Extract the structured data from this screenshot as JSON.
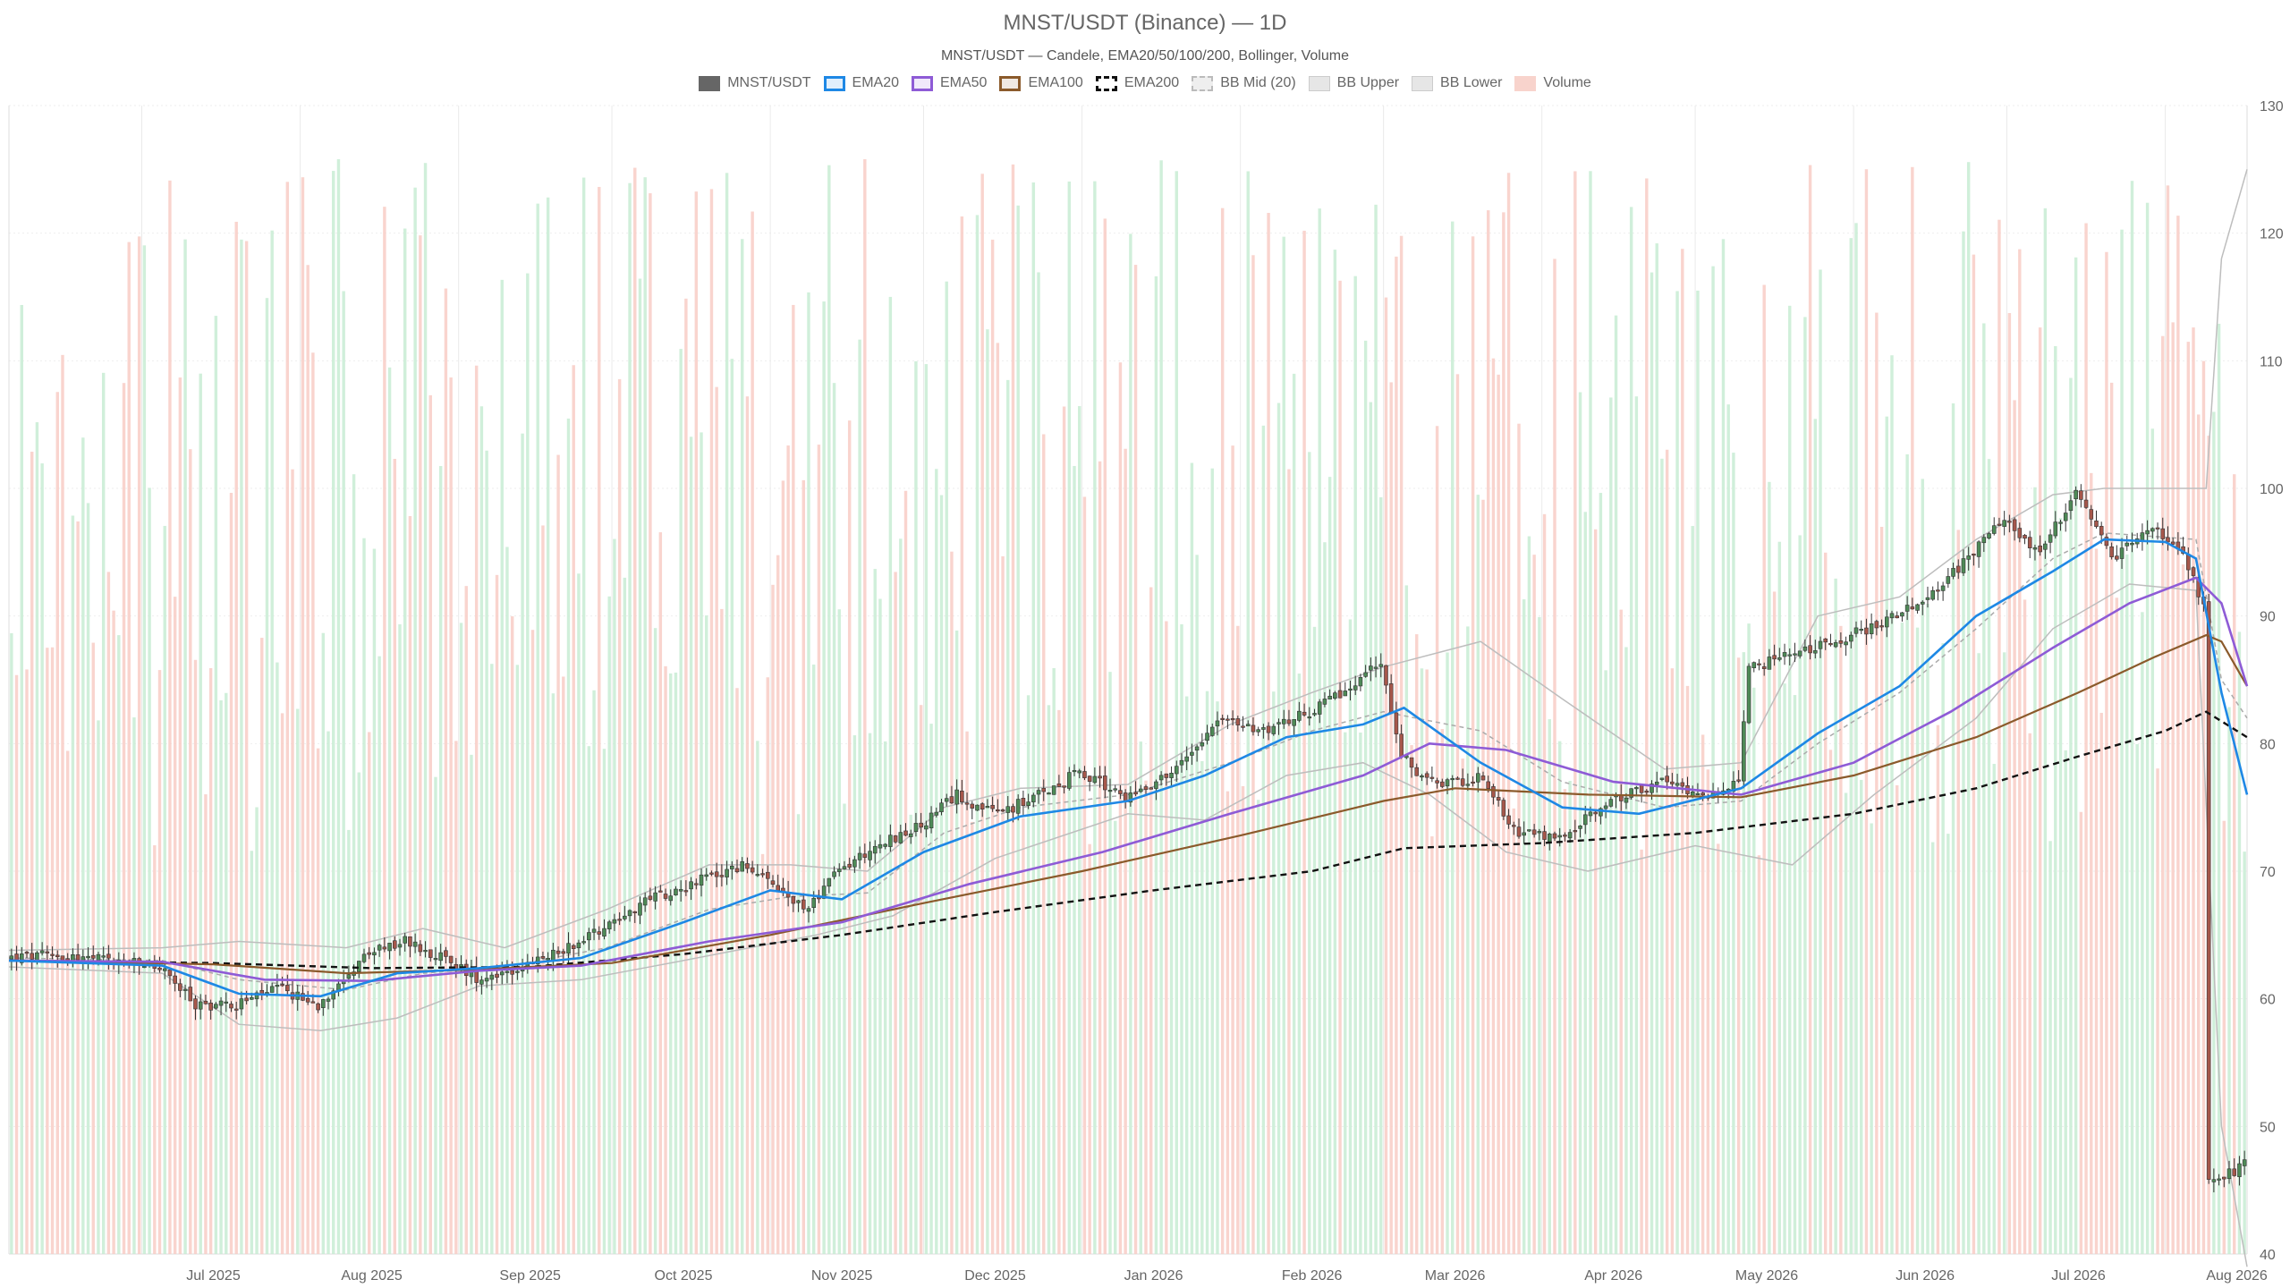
{
  "chart_data": {
    "type": "candlestick",
    "title": "MNST/USDT (Binance) — 1D",
    "subtitle": "MNST/USDT — Candele, EMA20/50/100/200, Bollinger, Volume",
    "legend": [
      {
        "name": "MNST/USDT",
        "color": "#666666",
        "style": "fill"
      },
      {
        "name": "EMA20",
        "color": "#1e88e5",
        "style": "line"
      },
      {
        "name": "EMA50",
        "color": "#8e5bd6",
        "style": "line"
      },
      {
        "name": "EMA100",
        "color": "#8b5a2b",
        "style": "line"
      },
      {
        "name": "EMA200",
        "color": "#111111",
        "style": "dashed"
      },
      {
        "name": "BB Mid (20)",
        "color": "#aaaaaa",
        "style": "dashed-light"
      },
      {
        "name": "BB Upper",
        "color": "#bbbbbb",
        "style": "light"
      },
      {
        "name": "BB Lower",
        "color": "#bbbbbb",
        "style": "light"
      },
      {
        "name": "Volume",
        "color": "#f5a89a",
        "style": "fill-light"
      }
    ],
    "x_start": "2025-06-05",
    "x_end": "2026-08-17",
    "x_ticks": [
      "Jul 2025",
      "Aug 2025",
      "Sep 2025",
      "Oct 2025",
      "Nov 2025",
      "Dec 2025",
      "Jan 2026",
      "Feb 2026",
      "Mar 2026",
      "Apr 2026",
      "May 2026",
      "Jun 2026",
      "Jul 2026",
      "Aug 2026"
    ],
    "y_ticks": [
      40,
      50,
      60,
      70,
      80,
      90,
      100,
      110,
      120,
      130
    ],
    "ylim": [
      40,
      130
    ],
    "legend_position": "top-center",
    "grid": true,
    "price_path": [
      [
        "2025-06-05",
        63.2
      ],
      [
        "2025-06-15",
        63.4
      ],
      [
        "2025-06-25",
        63.0
      ],
      [
        "2025-07-05",
        62.5
      ],
      [
        "2025-07-12",
        59.5
      ],
      [
        "2025-07-20",
        59.6
      ],
      [
        "2025-07-28",
        60.8
      ],
      [
        "2025-08-05",
        59.5
      ],
      [
        "2025-08-10",
        61.8
      ],
      [
        "2025-08-15",
        63.5
      ],
      [
        "2025-08-22",
        64.5
      ],
      [
        "2025-08-28",
        63.5
      ],
      [
        "2025-09-05",
        61.7
      ],
      [
        "2025-09-15",
        62.5
      ],
      [
        "2025-09-25",
        64.5
      ],
      [
        "2025-10-01",
        66.0
      ],
      [
        "2025-10-10",
        68.0
      ],
      [
        "2025-10-20",
        69.5
      ],
      [
        "2025-10-28",
        70.5
      ],
      [
        "2025-11-01",
        69.0
      ],
      [
        "2025-11-08",
        67.0
      ],
      [
        "2025-11-15",
        70.0
      ],
      [
        "2025-11-22",
        72.0
      ],
      [
        "2025-12-01",
        73.5
      ],
      [
        "2025-12-08",
        76.0
      ],
      [
        "2025-12-15",
        74.5
      ],
      [
        "2025-12-22",
        75.5
      ],
      [
        "2026-01-01",
        77.8
      ],
      [
        "2026-01-10",
        75.8
      ],
      [
        "2026-01-20",
        78.0
      ],
      [
        "2026-01-28",
        82.0
      ],
      [
        "2026-02-05",
        81.0
      ],
      [
        "2026-02-15",
        82.5
      ],
      [
        "2026-02-22",
        84.0
      ],
      [
        "2026-03-01",
        86.5
      ],
      [
        "2026-03-05",
        79.0
      ],
      [
        "2026-03-12",
        76.5
      ],
      [
        "2026-03-20",
        77.5
      ],
      [
        "2026-03-28",
        73.0
      ],
      [
        "2026-04-05",
        72.5
      ],
      [
        "2026-04-15",
        75.5
      ],
      [
        "2026-04-25",
        77.0
      ],
      [
        "2026-05-05",
        76.0
      ],
      [
        "2026-05-10",
        76.8
      ],
      [
        "2026-05-12",
        86.0
      ],
      [
        "2026-05-22",
        87.0
      ],
      [
        "2026-06-01",
        88.5
      ],
      [
        "2026-06-10",
        90.0
      ],
      [
        "2026-06-20",
        93.0
      ],
      [
        "2026-07-01",
        97.5
      ],
      [
        "2026-07-08",
        95.0
      ],
      [
        "2026-07-15",
        99.5
      ],
      [
        "2026-07-22",
        94.5
      ],
      [
        "2026-07-30",
        97.0
      ],
      [
        "2026-08-05",
        94.5
      ],
      [
        "2026-08-09",
        91.0
      ],
      [
        "2026-08-10",
        45.5
      ],
      [
        "2026-08-17",
        47.0
      ]
    ],
    "ema_paths": {
      "EMA20": [
        [
          "2025-06-05",
          63.0
        ],
        [
          "2025-07-05",
          62.6
        ],
        [
          "2025-07-20",
          60.4
        ],
        [
          "2025-08-05",
          60.2
        ],
        [
          "2025-08-20",
          62.0
        ],
        [
          "2025-09-05",
          62.4
        ],
        [
          "2025-09-25",
          63.2
        ],
        [
          "2025-10-15",
          66.0
        ],
        [
          "2025-11-01",
          68.5
        ],
        [
          "2025-11-15",
          67.8
        ],
        [
          "2025-12-01",
          71.5
        ],
        [
          "2025-12-20",
          74.3
        ],
        [
          "2026-01-10",
          75.5
        ],
        [
          "2026-01-25",
          77.5
        ],
        [
          "2026-02-10",
          80.5
        ],
        [
          "2026-02-25",
          81.5
        ],
        [
          "2026-03-05",
          82.8
        ],
        [
          "2026-03-20",
          78.5
        ],
        [
          "2026-04-05",
          75.0
        ],
        [
          "2026-04-20",
          74.5
        ],
        [
          "2026-05-10",
          76.5
        ],
        [
          "2026-05-25",
          80.8
        ],
        [
          "2026-06-10",
          84.5
        ],
        [
          "2026-06-25",
          90.0
        ],
        [
          "2026-07-10",
          93.5
        ],
        [
          "2026-07-20",
          96.0
        ],
        [
          "2026-08-01",
          95.8
        ],
        [
          "2026-08-07",
          94.5
        ],
        [
          "2026-08-12",
          84.0
        ],
        [
          "2026-08-17",
          76.0
        ]
      ],
      "EMA50": [
        [
          "2025-06-05",
          63.0
        ],
        [
          "2025-07-05",
          62.9
        ],
        [
          "2025-07-25",
          61.5
        ],
        [
          "2025-08-15",
          61.4
        ],
        [
          "2025-09-05",
          62.2
        ],
        [
          "2025-09-25",
          62.6
        ],
        [
          "2025-10-20",
          64.5
        ],
        [
          "2025-11-15",
          66.0
        ],
        [
          "2025-12-10",
          69.0
        ],
        [
          "2026-01-05",
          71.5
        ],
        [
          "2026-01-30",
          74.5
        ],
        [
          "2026-02-25",
          77.5
        ],
        [
          "2026-03-10",
          80.0
        ],
        [
          "2026-03-25",
          79.5
        ],
        [
          "2026-04-15",
          77.0
        ],
        [
          "2026-05-10",
          76.0
        ],
        [
          "2026-06-01",
          78.5
        ],
        [
          "2026-06-20",
          82.5
        ],
        [
          "2026-07-10",
          87.5
        ],
        [
          "2026-07-25",
          91.0
        ],
        [
          "2026-08-07",
          93.0
        ],
        [
          "2026-08-12",
          91.0
        ],
        [
          "2026-08-17",
          84.5
        ]
      ],
      "EMA100": [
        [
          "2025-06-05",
          63.0
        ],
        [
          "2025-07-15",
          62.7
        ],
        [
          "2025-08-10",
          62.0
        ],
        [
          "2025-09-05",
          62.3
        ],
        [
          "2025-10-01",
          62.8
        ],
        [
          "2025-11-01",
          65.0
        ],
        [
          "2025-12-01",
          67.5
        ],
        [
          "2026-01-01",
          70.0
        ],
        [
          "2026-02-01",
          72.8
        ],
        [
          "2026-03-01",
          75.5
        ],
        [
          "2026-03-15",
          76.5
        ],
        [
          "2026-04-10",
          76.0
        ],
        [
          "2026-05-10",
          75.8
        ],
        [
          "2026-06-01",
          77.5
        ],
        [
          "2026-06-25",
          80.5
        ],
        [
          "2026-07-15",
          84.0
        ],
        [
          "2026-07-30",
          86.8
        ],
        [
          "2026-08-09",
          88.5
        ],
        [
          "2026-08-12",
          88.0
        ],
        [
          "2026-08-17",
          84.5
        ]
      ],
      "EMA200": [
        [
          "2025-06-05",
          63.0
        ],
        [
          "2025-07-15",
          62.8
        ],
        [
          "2025-08-15",
          62.4
        ],
        [
          "2025-09-15",
          62.5
        ],
        [
          "2025-10-15",
          63.5
        ],
        [
          "2025-11-15",
          65.0
        ],
        [
          "2025-12-15",
          66.8
        ],
        [
          "2026-01-15",
          68.5
        ],
        [
          "2026-02-15",
          70.0
        ],
        [
          "2026-03-05",
          71.8
        ],
        [
          "2026-04-01",
          72.2
        ],
        [
          "2026-05-01",
          73.0
        ],
        [
          "2026-06-01",
          74.5
        ],
        [
          "2026-06-25",
          76.5
        ],
        [
          "2026-07-15",
          79.0
        ],
        [
          "2026-08-01",
          81.0
        ],
        [
          "2026-08-09",
          82.5
        ],
        [
          "2026-08-17",
          80.5
        ]
      ]
    },
    "bollinger": {
      "upper": [
        [
          "2025-06-05",
          63.8
        ],
        [
          "2025-07-05",
          64.0
        ],
        [
          "2025-07-20",
          64.5
        ],
        [
          "2025-08-10",
          64.0
        ],
        [
          "2025-08-25",
          65.5
        ],
        [
          "2025-09-10",
          64.0
        ],
        [
          "2025-09-30",
          67.0
        ],
        [
          "2025-10-20",
          70.5
        ],
        [
          "2025-11-05",
          70.5
        ],
        [
          "2025-11-20",
          70.0
        ],
        [
          "2025-12-05",
          75.0
        ],
        [
          "2025-12-20",
          76.5
        ],
        [
          "2026-01-10",
          76.8
        ],
        [
          "2026-01-30",
          81.5
        ],
        [
          "2026-02-15",
          84.0
        ],
        [
          "2026-03-01",
          86.0
        ],
        [
          "2026-03-20",
          88.0
        ],
        [
          "2026-04-05",
          83.5
        ],
        [
          "2026-04-25",
          78.0
        ],
        [
          "2026-05-10",
          78.5
        ],
        [
          "2026-05-25",
          90.0
        ],
        [
          "2026-06-10",
          91.5
        ],
        [
          "2026-06-25",
          96.0
        ],
        [
          "2026-07-10",
          99.5
        ],
        [
          "2026-07-20",
          100.0
        ],
        [
          "2026-08-09",
          100.0
        ],
        [
          "2026-08-12",
          118.0
        ],
        [
          "2026-08-17",
          125.0
        ]
      ],
      "lower": [
        [
          "2025-06-05",
          62.5
        ],
        [
          "2025-07-05",
          62.0
        ],
        [
          "2025-07-20",
          58.0
        ],
        [
          "2025-08-05",
          57.5
        ],
        [
          "2025-08-20",
          58.5
        ],
        [
          "2025-09-05",
          61.0
        ],
        [
          "2025-09-25",
          61.5
        ],
        [
          "2025-10-15",
          63.0
        ],
        [
          "2025-11-10",
          65.0
        ],
        [
          "2025-11-25",
          66.5
        ],
        [
          "2025-12-15",
          71.0
        ],
        [
          "2026-01-10",
          74.5
        ],
        [
          "2026-01-25",
          74.0
        ],
        [
          "2026-02-10",
          77.5
        ],
        [
          "2026-02-25",
          78.5
        ],
        [
          "2026-03-10",
          76.0
        ],
        [
          "2026-03-25",
          71.5
        ],
        [
          "2026-04-10",
          70.0
        ],
        [
          "2026-05-01",
          72.0
        ],
        [
          "2026-05-20",
          70.5
        ],
        [
          "2026-06-05",
          76.0
        ],
        [
          "2026-06-25",
          82.0
        ],
        [
          "2026-07-10",
          89.0
        ],
        [
          "2026-07-25",
          92.5
        ],
        [
          "2026-08-07",
          92.0
        ],
        [
          "2026-08-12",
          50.0
        ],
        [
          "2026-08-17",
          39.0
        ]
      ],
      "mid": [
        [
          "2025-06-05",
          63.2
        ],
        [
          "2025-07-05",
          63.0
        ],
        [
          "2025-07-20",
          61.5
        ],
        [
          "2025-08-10",
          60.7
        ],
        [
          "2025-08-25",
          62.0
        ],
        [
          "2025-09-10",
          62.5
        ],
        [
          "2025-09-30",
          64.0
        ],
        [
          "2025-10-20",
          67.0
        ],
        [
          "2025-11-05",
          68.0
        ],
        [
          "2025-11-20",
          68.3
        ],
        [
          "2025-12-05",
          73.0
        ],
        [
          "2025-12-20",
          75.0
        ],
        [
          "2026-01-10",
          76.0
        ],
        [
          "2026-01-30",
          78.5
        ],
        [
          "2026-02-15",
          81.0
        ],
        [
          "2026-03-01",
          82.5
        ],
        [
          "2026-03-20",
          81.0
        ],
        [
          "2026-04-05",
          77.0
        ],
        [
          "2026-04-25",
          75.0
        ],
        [
          "2026-05-10",
          75.5
        ],
        [
          "2026-05-25",
          80.0
        ],
        [
          "2026-06-10",
          84.0
        ],
        [
          "2026-06-25",
          89.0
        ],
        [
          "2026-07-10",
          94.5
        ],
        [
          "2026-07-20",
          96.5
        ],
        [
          "2026-08-07",
          96.0
        ],
        [
          "2026-08-12",
          85.0
        ],
        [
          "2026-08-17",
          82.0
        ]
      ]
    },
    "volume_range": [
      40,
      130
    ]
  }
}
